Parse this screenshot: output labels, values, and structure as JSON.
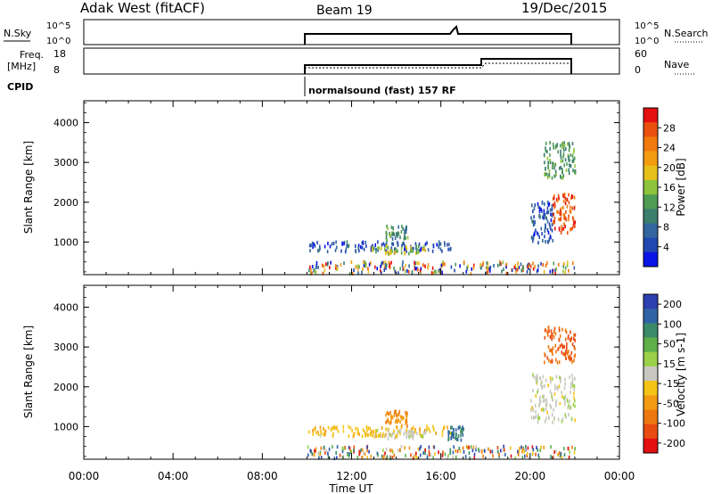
{
  "header": {
    "radar": "Adak West (fitACF)",
    "beam": "Beam 19",
    "date": "19/Dec/2015"
  },
  "status_panels": {
    "nsky_label": "N.Sky",
    "nsky_ticks": [
      "10^5",
      "10^0"
    ],
    "nsearch_label": "N.Search",
    "freq_label": "Freq.",
    "freq_unit": "[MHz]",
    "freq_ticks": [
      "18",
      "8"
    ],
    "nave_label": "Nave",
    "nave_ticks": [
      "60",
      "0"
    ],
    "cpid_label": "CPID",
    "cpid_text": "normalsound (fast) 157 RF"
  },
  "colors": {
    "power_scale": [
      "#0a14e6",
      "#2148b0",
      "#33669e",
      "#3c7f6f",
      "#4e9c56",
      "#8ec43c",
      "#e8c01c",
      "#f39c12",
      "#f07a0e",
      "#ea5010",
      "#e51010"
    ],
    "velocity_scale": [
      "#2e3fb0",
      "#2f63a6",
      "#3b8a6a",
      "#5fb04a",
      "#9ad148",
      "#c8c8c0",
      "#f5c316",
      "#f29b12",
      "#ee7810",
      "#e84c10",
      "#e21010"
    ]
  },
  "chart_data": [
    {
      "type": "heatmap",
      "name": "Power",
      "xlabel": "",
      "ylabel": "Slant Range [km]",
      "xlim": [
        "00:00",
        "24:00"
      ],
      "x_ticks": [
        "00:00",
        "04:00",
        "08:00",
        "12:00",
        "16:00",
        "20:00",
        "00:00"
      ],
      "ylim": [
        180,
        4550
      ],
      "y_ticks": [
        1000,
        2000,
        3000,
        4000
      ],
      "colorbar_label": "Power [dB]",
      "colorbar_ticks": [
        "4",
        "8",
        "12",
        "16",
        "20",
        "24",
        "28"
      ],
      "regions": [
        {
          "t_start": 10.0,
          "t_end": 22.0,
          "r_min": 200,
          "r_max": 500,
          "level": "mixed low-range returns"
        },
        {
          "t_start": 10.0,
          "t_end": 16.5,
          "r_min": 750,
          "r_max": 1000,
          "level": 4
        },
        {
          "t_start": 12.8,
          "t_end": 15.3,
          "r_min": 700,
          "r_max": 900,
          "level": 16
        },
        {
          "t_start": 13.5,
          "t_end": 14.5,
          "r_min": 1000,
          "r_max": 1400,
          "level": 10
        },
        {
          "t_start": 20.0,
          "t_end": 21.0,
          "r_min": 950,
          "r_max": 2000,
          "level": 4
        },
        {
          "t_start": 21.0,
          "t_end": 22.0,
          "r_min": 1200,
          "r_max": 2200,
          "level": 26
        },
        {
          "t_start": 20.6,
          "t_end": 22.0,
          "r_min": 2600,
          "r_max": 3500,
          "level": 12
        }
      ]
    },
    {
      "type": "heatmap",
      "name": "Velocity",
      "xlabel": "Time UT",
      "ylabel": "Slant Range [km]",
      "xlim": [
        "00:00",
        "24:00"
      ],
      "x_ticks": [
        "00:00",
        "04:00",
        "08:00",
        "12:00",
        "16:00",
        "20:00",
        "00:00"
      ],
      "ylim": [
        180,
        4550
      ],
      "y_ticks": [
        1000,
        2000,
        3000,
        4000
      ],
      "colorbar_label": "Velocity [m s-1]",
      "colorbar_ticks": [
        "200",
        "100",
        "50",
        "15",
        "-15",
        "-50",
        "-100",
        "-200"
      ],
      "regions": [
        {
          "t_start": 10.0,
          "t_end": 22.0,
          "r_min": 200,
          "r_max": 500,
          "level": "mixed low-range velocities"
        },
        {
          "t_start": 10.0,
          "t_end": 16.5,
          "r_min": 750,
          "r_max": 1000,
          "level": -50
        },
        {
          "t_start": 13.5,
          "t_end": 14.5,
          "r_min": 1000,
          "r_max": 1400,
          "level": -100
        },
        {
          "t_start": 13.0,
          "t_end": 15.3,
          "r_min": 700,
          "r_max": 900,
          "level": 0
        },
        {
          "t_start": 16.3,
          "t_end": 17.0,
          "r_min": 650,
          "r_max": 1000,
          "level": 150
        },
        {
          "t_start": 20.0,
          "t_end": 22.0,
          "r_min": 1100,
          "r_max": 2300,
          "level": 0
        },
        {
          "t_start": 20.6,
          "t_end": 22.0,
          "r_min": 2600,
          "r_max": 3500,
          "level": -150
        }
      ]
    }
  ]
}
